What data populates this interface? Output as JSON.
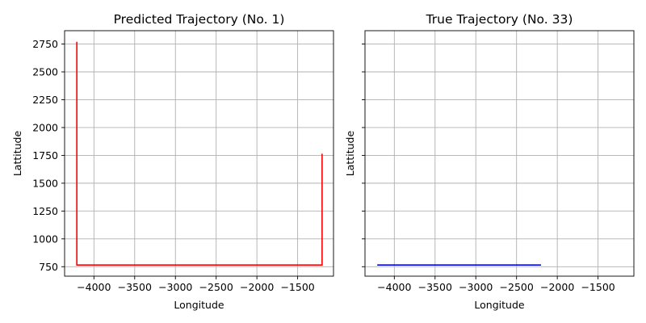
{
  "chart_data": [
    {
      "type": "line",
      "title": "Predicted Trajectory (No. 1)",
      "xlabel": "Longitude",
      "ylabel": "Lattitude",
      "xlim": [
        -4360,
        -1060
      ],
      "ylim": [
        665,
        2870
      ],
      "xticks": [
        -4000,
        -3500,
        -3000,
        -2500,
        -2000,
        -1500
      ],
      "yticks": [
        750,
        1000,
        1250,
        1500,
        1750,
        2000,
        2250,
        2500,
        2750
      ],
      "show_ytick_labels": true,
      "grid": true,
      "series": [
        {
          "color": "#ff0000",
          "x": [
            -4210,
            -4210,
            -1200,
            -1200
          ],
          "y": [
            2770,
            765,
            765,
            1765
          ]
        }
      ]
    },
    {
      "type": "line",
      "title": "True Trajectory (No. 33)",
      "xlabel": "Longitude",
      "ylabel": "Lattitude",
      "xlim": [
        -4360,
        -1060
      ],
      "ylim": [
        665,
        2870
      ],
      "xticks": [
        -4000,
        -3500,
        -3000,
        -2500,
        -2000,
        -1500
      ],
      "yticks": [
        750,
        1000,
        1250,
        1500,
        1750,
        2000,
        2250,
        2500,
        2750
      ],
      "show_ytick_labels": false,
      "grid": true,
      "series": [
        {
          "color": "#0000ff",
          "x": [
            -4210,
            -2200
          ],
          "y": [
            765,
            765
          ]
        }
      ]
    }
  ]
}
